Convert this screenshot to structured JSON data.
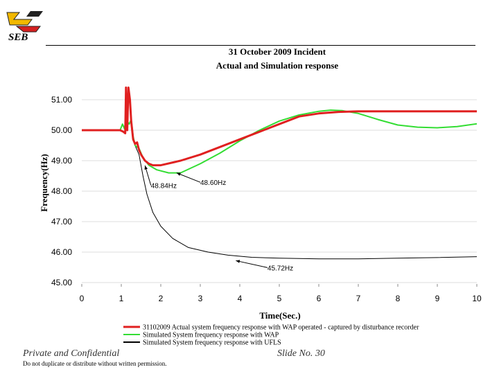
{
  "header": {
    "logo_text": "SEB",
    "title_line1": "31 October 2009 Incident",
    "title_line2": "Actual and Simulation response"
  },
  "footer": {
    "confidential": "Private and Confidential",
    "slide_number": "Slide No. 30",
    "note": "Do not duplicate or distribute without written permission."
  },
  "colors": {
    "actual": "#e02020",
    "wap": "#33dd33",
    "ufls": "#000000"
  },
  "chart_data": {
    "type": "line",
    "title": "31 October 2009 Incident Actual and Simulation response",
    "xlabel": "Time(Sec.)",
    "ylabel": "Frequency(Hz)",
    "xlim": [
      0,
      10
    ],
    "ylim": [
      45,
      51.5
    ],
    "x_ticks": [
      "0",
      "1",
      "2",
      "3",
      "4",
      "5",
      "6",
      "7",
      "8",
      "9",
      "10"
    ],
    "y_ticks": [
      "51.00",
      "50.00",
      "49.00",
      "48.00",
      "47.00",
      "46.00",
      "45.00"
    ],
    "series": [
      {
        "name": "31102009 Actual system frequency response with WAP operated - captured by disturbance recorder",
        "color_key": "actual",
        "points": [
          [
            0,
            50.0
          ],
          [
            0.97,
            50.0
          ],
          [
            1.05,
            49.95
          ],
          [
            1.1,
            49.9
          ],
          [
            1.12,
            51.4
          ],
          [
            1.15,
            50.0
          ],
          [
            1.18,
            51.4
          ],
          [
            1.22,
            51.0
          ],
          [
            1.25,
            50.3
          ],
          [
            1.3,
            49.7
          ],
          [
            1.35,
            49.55
          ],
          [
            1.4,
            49.6
          ],
          [
            1.45,
            49.35
          ],
          [
            1.5,
            49.2
          ],
          [
            1.6,
            49.0
          ],
          [
            1.7,
            48.9
          ],
          [
            1.8,
            48.85
          ],
          [
            2.0,
            48.85
          ],
          [
            2.5,
            49.0
          ],
          [
            3.0,
            49.2
          ],
          [
            3.5,
            49.45
          ],
          [
            4.0,
            49.7
          ],
          [
            4.5,
            49.95
          ],
          [
            5.0,
            50.2
          ],
          [
            5.5,
            50.45
          ],
          [
            6.0,
            50.55
          ],
          [
            6.5,
            50.6
          ],
          [
            7.0,
            50.62
          ],
          [
            10.0,
            50.62
          ]
        ]
      },
      {
        "name": "Simulated System frequency response with WAP",
        "color_key": "wap",
        "points": [
          [
            0,
            50.0
          ],
          [
            0.97,
            50.0
          ],
          [
            1.03,
            50.2
          ],
          [
            1.08,
            50.05
          ],
          [
            1.12,
            50.35
          ],
          [
            1.2,
            50.2
          ],
          [
            1.25,
            50.35
          ],
          [
            1.3,
            49.8
          ],
          [
            1.35,
            49.5
          ],
          [
            1.45,
            49.4
          ],
          [
            1.55,
            49.1
          ],
          [
            1.7,
            48.85
          ],
          [
            1.9,
            48.7
          ],
          [
            2.2,
            48.6
          ],
          [
            2.5,
            48.6
          ],
          [
            3.0,
            48.9
          ],
          [
            3.5,
            49.25
          ],
          [
            4.0,
            49.65
          ],
          [
            4.5,
            50.0
          ],
          [
            5.0,
            50.3
          ],
          [
            5.5,
            50.5
          ],
          [
            6.0,
            50.62
          ],
          [
            6.3,
            50.66
          ],
          [
            6.6,
            50.64
          ],
          [
            7.0,
            50.55
          ],
          [
            7.5,
            50.35
          ],
          [
            8.0,
            50.17
          ],
          [
            8.5,
            50.1
          ],
          [
            9.0,
            50.08
          ],
          [
            9.5,
            50.12
          ],
          [
            10.0,
            50.21
          ]
        ]
      },
      {
        "name": "Simulated System frequency response with UFLS",
        "color_key": "ufls",
        "points": [
          [
            0,
            50.0
          ],
          [
            0.97,
            50.0
          ],
          [
            1.03,
            50.2
          ],
          [
            1.08,
            50.05
          ],
          [
            1.12,
            50.35
          ],
          [
            1.2,
            50.2
          ],
          [
            1.25,
            50.35
          ],
          [
            1.3,
            49.8
          ],
          [
            1.35,
            49.5
          ],
          [
            1.45,
            49.2
          ],
          [
            1.55,
            48.5
          ],
          [
            1.65,
            47.9
          ],
          [
            1.8,
            47.3
          ],
          [
            2.0,
            46.85
          ],
          [
            2.3,
            46.45
          ],
          [
            2.7,
            46.15
          ],
          [
            3.2,
            46.0
          ],
          [
            3.7,
            45.9
          ],
          [
            4.3,
            45.83
          ],
          [
            5.0,
            45.8
          ],
          [
            6.0,
            45.78
          ],
          [
            7.0,
            45.78
          ],
          [
            8.0,
            45.8
          ],
          [
            9.0,
            45.82
          ],
          [
            10.0,
            45.85
          ]
        ]
      }
    ],
    "annotations": [
      {
        "text": "48.84Hz",
        "x": 1.6,
        "y": 48.84,
        "label_x": 1.75,
        "label_y": 48.1
      },
      {
        "text": "48.60Hz",
        "x": 2.4,
        "y": 48.6,
        "label_x": 3.0,
        "label_y": 48.2
      },
      {
        "text": "45.72Hz",
        "x": 3.9,
        "y": 45.72,
        "label_x": 4.7,
        "label_y": 45.4
      }
    ],
    "legend": "bottom-center"
  }
}
